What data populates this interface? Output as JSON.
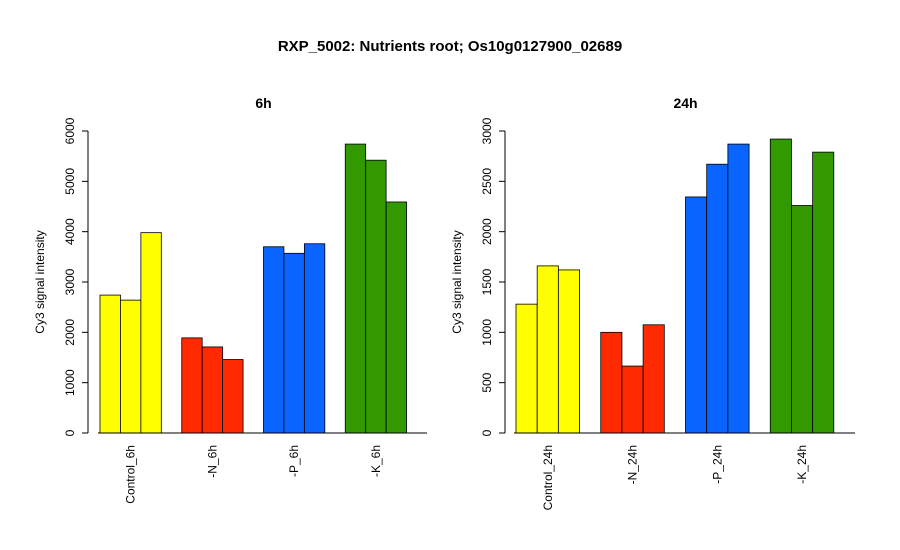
{
  "figure": {
    "title": "RXP_5002: Nutrients root; Os10g0127900_02689"
  },
  "chart_data": [
    {
      "type": "bar",
      "title": "6h",
      "ylabel": "Cy3 signal intensity",
      "xlabel": "",
      "ylim": [
        0,
        6000
      ],
      "yticks": [
        0,
        1000,
        2000,
        3000,
        4000,
        5000,
        6000
      ],
      "categories": [
        "Control_6h",
        "-N_6h",
        "-P_6h",
        "-K_6h"
      ],
      "colors": [
        "#ffff00",
        "#ff2a00",
        "#0a64ff",
        "#339900"
      ],
      "groups": [
        {
          "category": "Control_6h",
          "values": [
            2740,
            2640,
            3980
          ]
        },
        {
          "category": "-N_6h",
          "values": [
            1890,
            1710,
            1460
          ]
        },
        {
          "category": "-P_6h",
          "values": [
            3700,
            3570,
            3760
          ]
        },
        {
          "category": "-K_6h",
          "values": [
            5740,
            5420,
            4590
          ]
        }
      ],
      "grid": false,
      "legend": "none"
    },
    {
      "type": "bar",
      "title": "24h",
      "ylabel": "Cy3 signal intensity",
      "xlabel": "",
      "ylim": [
        0,
        3000
      ],
      "yticks": [
        0,
        500,
        1000,
        1500,
        2000,
        2500,
        3000
      ],
      "categories": [
        "Control_24h",
        "-N_24h",
        "-P_24h",
        "-K_24h"
      ],
      "colors": [
        "#ffff00",
        "#ff2a00",
        "#0a64ff",
        "#339900"
      ],
      "groups": [
        {
          "category": "Control_24h",
          "values": [
            1280,
            1660,
            1620
          ]
        },
        {
          "category": "-N_24h",
          "values": [
            1000,
            665,
            1075
          ]
        },
        {
          "category": "-P_24h",
          "values": [
            2345,
            2670,
            2870
          ]
        },
        {
          "category": "-K_24h",
          "values": [
            2920,
            2260,
            2790
          ]
        }
      ],
      "grid": false,
      "legend": "none"
    }
  ]
}
